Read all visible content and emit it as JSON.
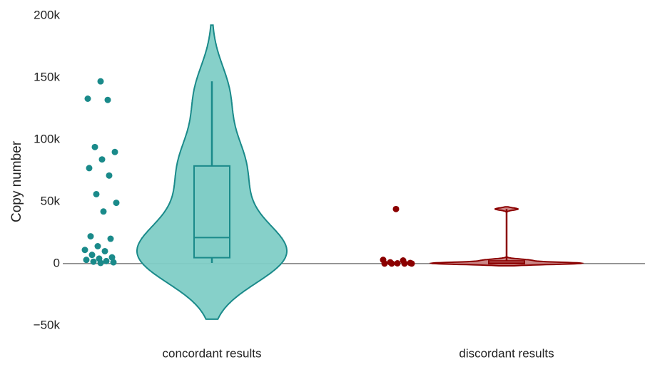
{
  "chart_data": {
    "type": "violin",
    "ylabel": "Copy number",
    "ylim": [
      -57000,
      204000
    ],
    "yticks": [
      {
        "value": -50000,
        "label": "−50k"
      },
      {
        "value": 0,
        "label": "0"
      },
      {
        "value": 50000,
        "label": "50k"
      },
      {
        "value": 100000,
        "label": "100k"
      },
      {
        "value": 150000,
        "label": "150k"
      },
      {
        "value": 200000,
        "label": "200k"
      }
    ],
    "zeroline": true,
    "series": [
      {
        "name": "concordant results",
        "color": "#1a8a8a",
        "fill": "#80cdc6",
        "values": [
          147000,
          133000,
          132000,
          94000,
          90000,
          84000,
          77000,
          71000,
          56000,
          49000,
          42000,
          22000,
          20000,
          14000,
          11000,
          10000,
          7000,
          5000,
          4000,
          3000,
          2000,
          1500,
          1000,
          500
        ]
      },
      {
        "name": "discordant results",
        "color": "#8b0000",
        "fill": "#c98080",
        "values": [
          44000,
          3000,
          2500,
          1000,
          500,
          200,
          0,
          0,
          0,
          0
        ]
      }
    ]
  }
}
